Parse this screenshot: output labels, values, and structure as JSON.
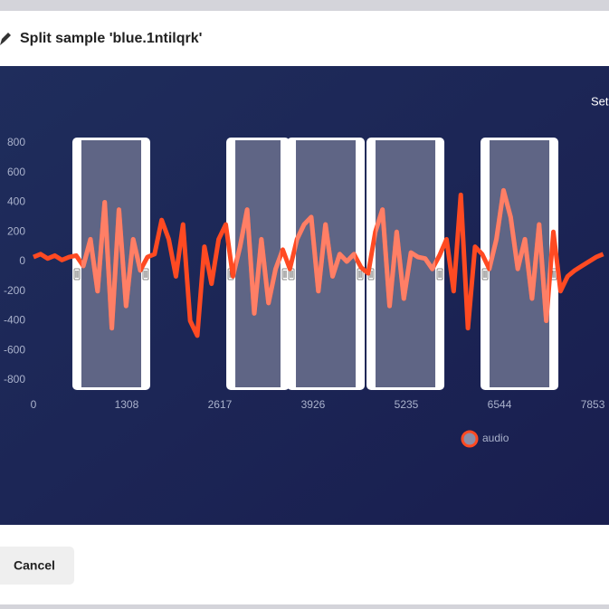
{
  "header": {
    "title": "Split sample 'blue.1ntilqrk'"
  },
  "chart_data": {
    "type": "line",
    "corner_text": "Set",
    "x": [
      0,
      100,
      200,
      300,
      400,
      500,
      600,
      700,
      800,
      900,
      1000,
      1100,
      1200,
      1300,
      1400,
      1500,
      1600,
      1700,
      1800,
      1900,
      2000,
      2100,
      2200,
      2300,
      2400,
      2500,
      2600,
      2700,
      2800,
      2900,
      3000,
      3100,
      3200,
      3300,
      3400,
      3500,
      3600,
      3700,
      3800,
      3900,
      4000,
      4100,
      4200,
      4300,
      4400,
      4500,
      4600,
      4700,
      4800,
      4900,
      5000,
      5100,
      5200,
      5300,
      5400,
      5500,
      5600,
      5700,
      5800,
      5900,
      6000,
      6100,
      6200,
      6300,
      6400,
      6500,
      6600,
      6700,
      6800,
      6900,
      7000,
      7100,
      7200,
      7300,
      7400,
      7500,
      7600,
      7700,
      7800,
      7900,
      8000
    ],
    "series": [
      {
        "name": "audio",
        "color": "#ff4a22",
        "highlight_color": "#ff7f66",
        "values": [
          30,
          50,
          20,
          40,
          10,
          30,
          40,
          -30,
          150,
          -200,
          400,
          -450,
          350,
          -300,
          150,
          -60,
          30,
          50,
          280,
          150,
          -100,
          250,
          -400,
          -500,
          100,
          -150,
          150,
          250,
          -100,
          100,
          350,
          -350,
          150,
          -280,
          -50,
          80,
          -50,
          150,
          250,
          300,
          -200,
          250,
          -100,
          50,
          0,
          50,
          -40,
          -80,
          200,
          350,
          -300,
          200,
          -250,
          60,
          30,
          20,
          -50,
          40,
          150,
          -200,
          450,
          -450,
          100,
          50,
          -50,
          150,
          480,
          300,
          -50,
          150,
          -250,
          250,
          -400,
          200,
          -200,
          -100,
          -60,
          -30,
          0,
          30,
          50
        ]
      }
    ],
    "xlim": [
      0,
      8081
    ],
    "ylim": [
      -800,
      800
    ],
    "xticks": [
      0,
      1308,
      2617,
      3926,
      5235,
      6544,
      7853
    ],
    "yticks": [
      800,
      600,
      400,
      200,
      0,
      -200,
      -400,
      -600,
      -800
    ],
    "regions": [
      [
        546,
        1639
      ],
      [
        2707,
        3596
      ],
      [
        3558,
        4651
      ],
      [
        4676,
        5769
      ],
      [
        6277,
        7370
      ]
    ]
  },
  "footer": {
    "cancel": "Cancel"
  }
}
